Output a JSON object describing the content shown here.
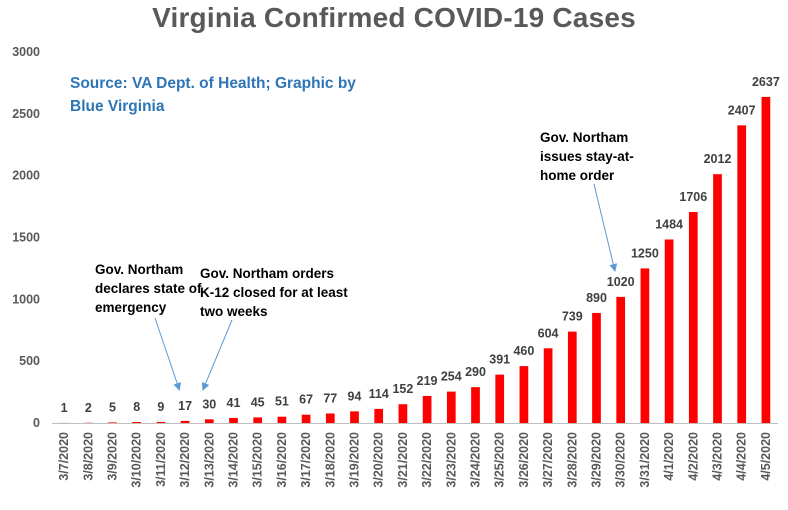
{
  "chart_data": {
    "type": "bar",
    "title": "Virginia Confirmed COVID-19 Cases",
    "xlabel": "",
    "ylabel": "",
    "ylim": [
      0,
      3000
    ],
    "yticks": [
      0,
      500,
      1000,
      1500,
      2000,
      2500,
      3000
    ],
    "grid": false,
    "legend": "none",
    "bar_color": "#ff0000",
    "categories": [
      "3/7/2020",
      "3/8/2020",
      "3/9/2020",
      "3/10/2020",
      "3/11/2020",
      "3/12/2020",
      "3/13/2020",
      "3/14/2020",
      "3/15/2020",
      "3/16/2020",
      "3/17/2020",
      "3/18/2020",
      "3/19/2020",
      "3/20/2020",
      "3/21/2020",
      "3/22/2020",
      "3/23/2020",
      "3/24/2020",
      "3/25/2020",
      "3/26/2020",
      "3/27/2020",
      "3/28/2020",
      "3/29/2020",
      "3/30/2020",
      "3/31/2020",
      "4/1/2020",
      "4/2/2020",
      "4/3/2020",
      "4/4/2020",
      "4/5/2020"
    ],
    "values": [
      1,
      2,
      5,
      8,
      9,
      17,
      30,
      41,
      45,
      51,
      67,
      77,
      94,
      114,
      152,
      219,
      254,
      290,
      391,
      460,
      604,
      739,
      890,
      1020,
      1250,
      1484,
      1706,
      2012,
      2407,
      2637
    ],
    "annotations": [
      {
        "text": "Gov. Northam declares state of emergency",
        "category": "3/12/2020"
      },
      {
        "text": "Gov. Northam orders K-12 closed  for at least two weeks",
        "category": "3/13/2020"
      },
      {
        "text": "Gov. Northam issues stay-at-home order",
        "category": "3/30/2020"
      }
    ]
  },
  "source_note": "Source: VA Dept. of Health; Graphic by Blue Virginia",
  "annotation_color": "#5b9bd5"
}
